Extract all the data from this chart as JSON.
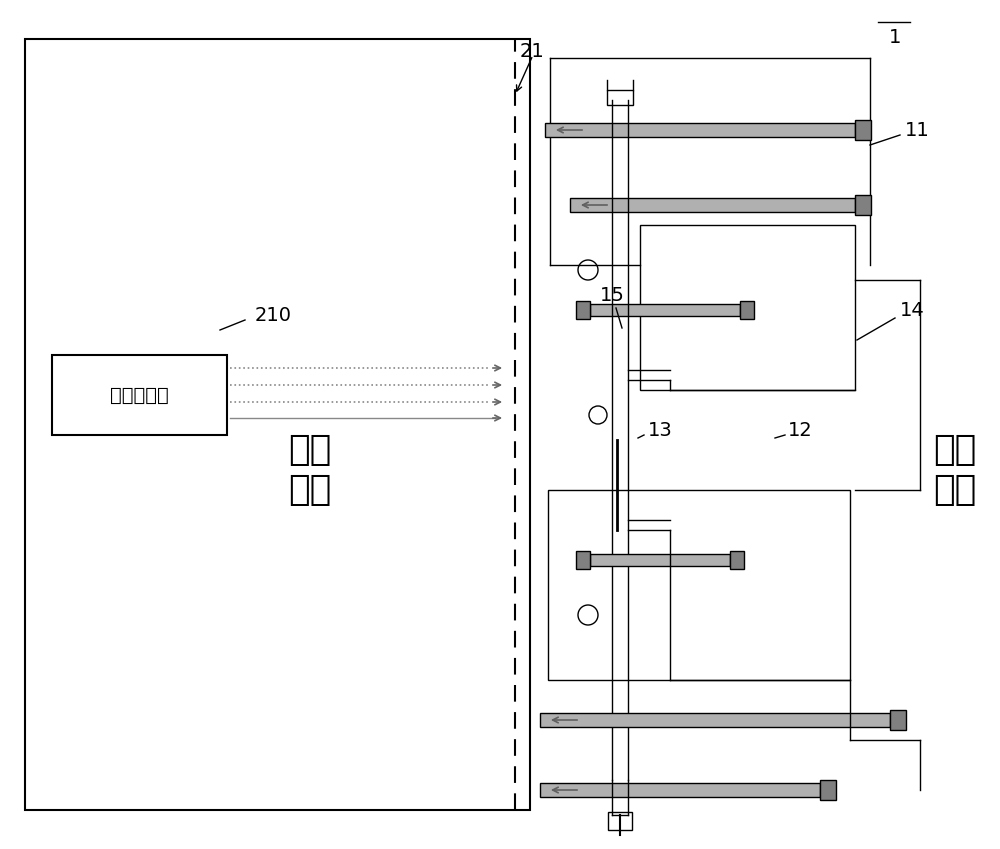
{
  "bg_color": "#ffffff",
  "line_color": "#000000",
  "gray_rod": "#b0b0b0",
  "dark_bolt": "#808080",
  "label_1": "1",
  "label_21": "21",
  "label_11": "11",
  "label_14": "14",
  "label_15": "15",
  "label_12": "12",
  "label_13": "13",
  "label_210": "210",
  "text_vacuum1": "真空",
  "text_vacuum2": "环境",
  "text_atm1": "大气",
  "text_atm2": "环境",
  "text_accel": "粒子加速器",
  "font_label": 13,
  "font_big": 26,
  "font_accel": 14
}
